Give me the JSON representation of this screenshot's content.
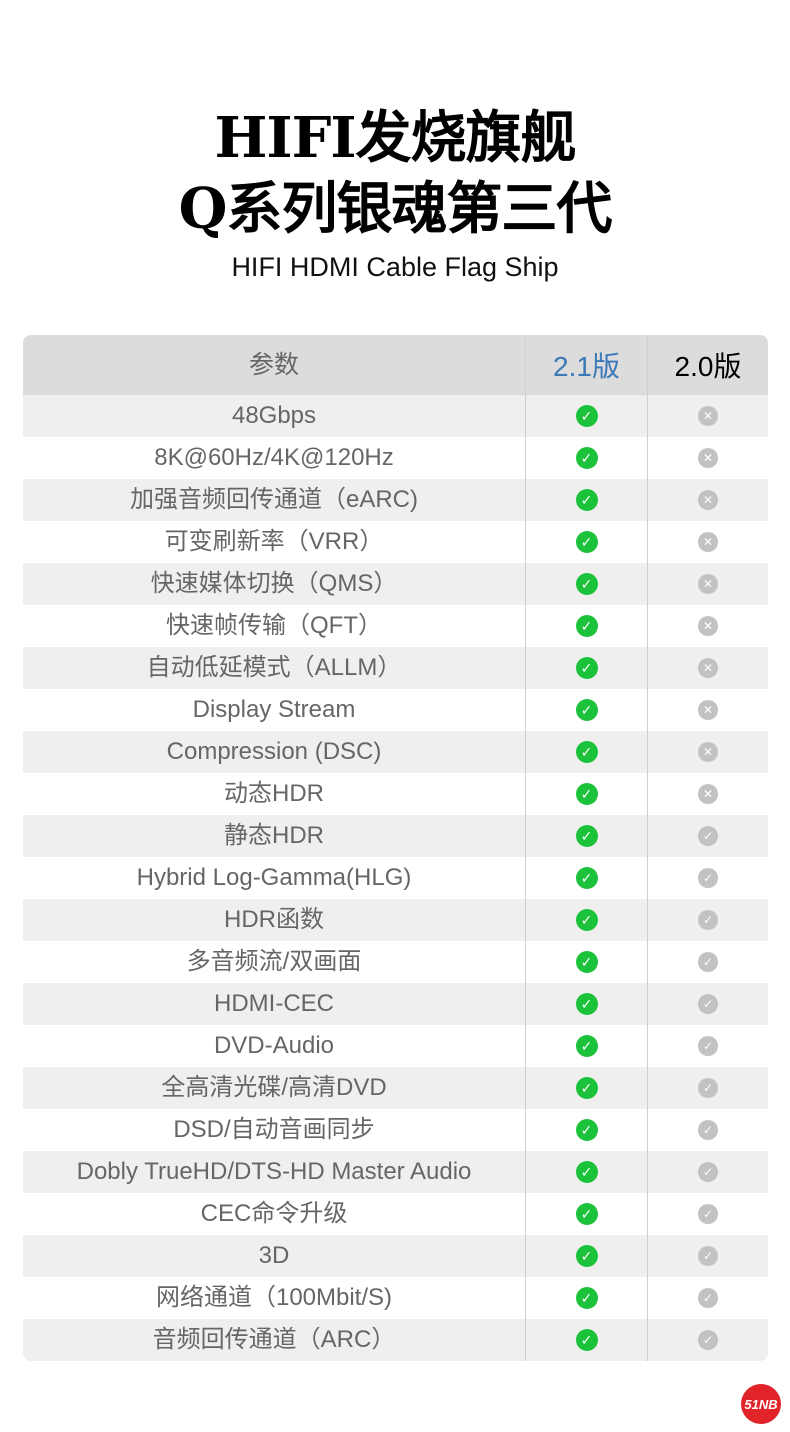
{
  "title_line1": "HIFI发烧旗舰",
  "title_line2": "Q系列银魂第三代",
  "subtitle": "HIFI HDMI Cable Flag Ship",
  "table": {
    "headers": [
      "参数",
      "2.1版",
      "2.0版"
    ],
    "header_colors": {
      "v21": "#3a78b8",
      "v20": "#000000"
    },
    "rows": [
      {
        "param": "48Gbps",
        "v21": "check",
        "v20": "cross"
      },
      {
        "param": "8K@60Hz/4K@120Hz",
        "v21": "check",
        "v20": "cross"
      },
      {
        "param": "加强音频回传通道（eARC)",
        "v21": "check",
        "v20": "cross"
      },
      {
        "param": "可变刷新率（VRR）",
        "v21": "check",
        "v20": "cross"
      },
      {
        "param": "快速媒体切换（QMS）",
        "v21": "check",
        "v20": "cross"
      },
      {
        "param": "快速帧传输（QFT）",
        "v21": "check",
        "v20": "cross"
      },
      {
        "param": "自动低延模式（ALLM）",
        "v21": "check",
        "v20": "cross"
      },
      {
        "param": "Display Stream",
        "v21": "check",
        "v20": "cross"
      },
      {
        "param": "Compression (DSC)",
        "v21": "check",
        "v20": "cross"
      },
      {
        "param": "动态HDR",
        "v21": "check",
        "v20": "cross"
      },
      {
        "param": "静态HDR",
        "v21": "check",
        "v20": "check-gray"
      },
      {
        "param": "Hybrid Log-Gamma(HLG)",
        "v21": "check",
        "v20": "check-gray"
      },
      {
        "param": "HDR函数",
        "v21": "check",
        "v20": "check-gray"
      },
      {
        "param": "多音频流/双画面",
        "v21": "check",
        "v20": "check-gray"
      },
      {
        "param": "HDMI-CEC",
        "v21": "check",
        "v20": "check-gray"
      },
      {
        "param": "DVD-Audio",
        "v21": "check",
        "v20": "check-gray"
      },
      {
        "param": "全高清光碟/高清DVD",
        "v21": "check",
        "v20": "check-gray"
      },
      {
        "param": "DSD/自动音画同步",
        "v21": "check",
        "v20": "check-gray"
      },
      {
        "param": "Dobly TrueHD/DTS-HD Master Audio",
        "v21": "check",
        "v20": "check-gray"
      },
      {
        "param": "CEC命令升级",
        "v21": "check",
        "v20": "check-gray"
      },
      {
        "param": "3D",
        "v21": "check",
        "v20": "check-gray"
      },
      {
        "param": "网络通道（100Mbit/S)",
        "v21": "check",
        "v20": "check-gray"
      },
      {
        "param": "音频回传通道（ARC）",
        "v21": "check",
        "v20": "check-gray"
      }
    ]
  },
  "logo": "51NB",
  "colors": {
    "check": "#1bc23a",
    "gray_icon": "#c2c2c2",
    "logo": "#e1232a"
  }
}
